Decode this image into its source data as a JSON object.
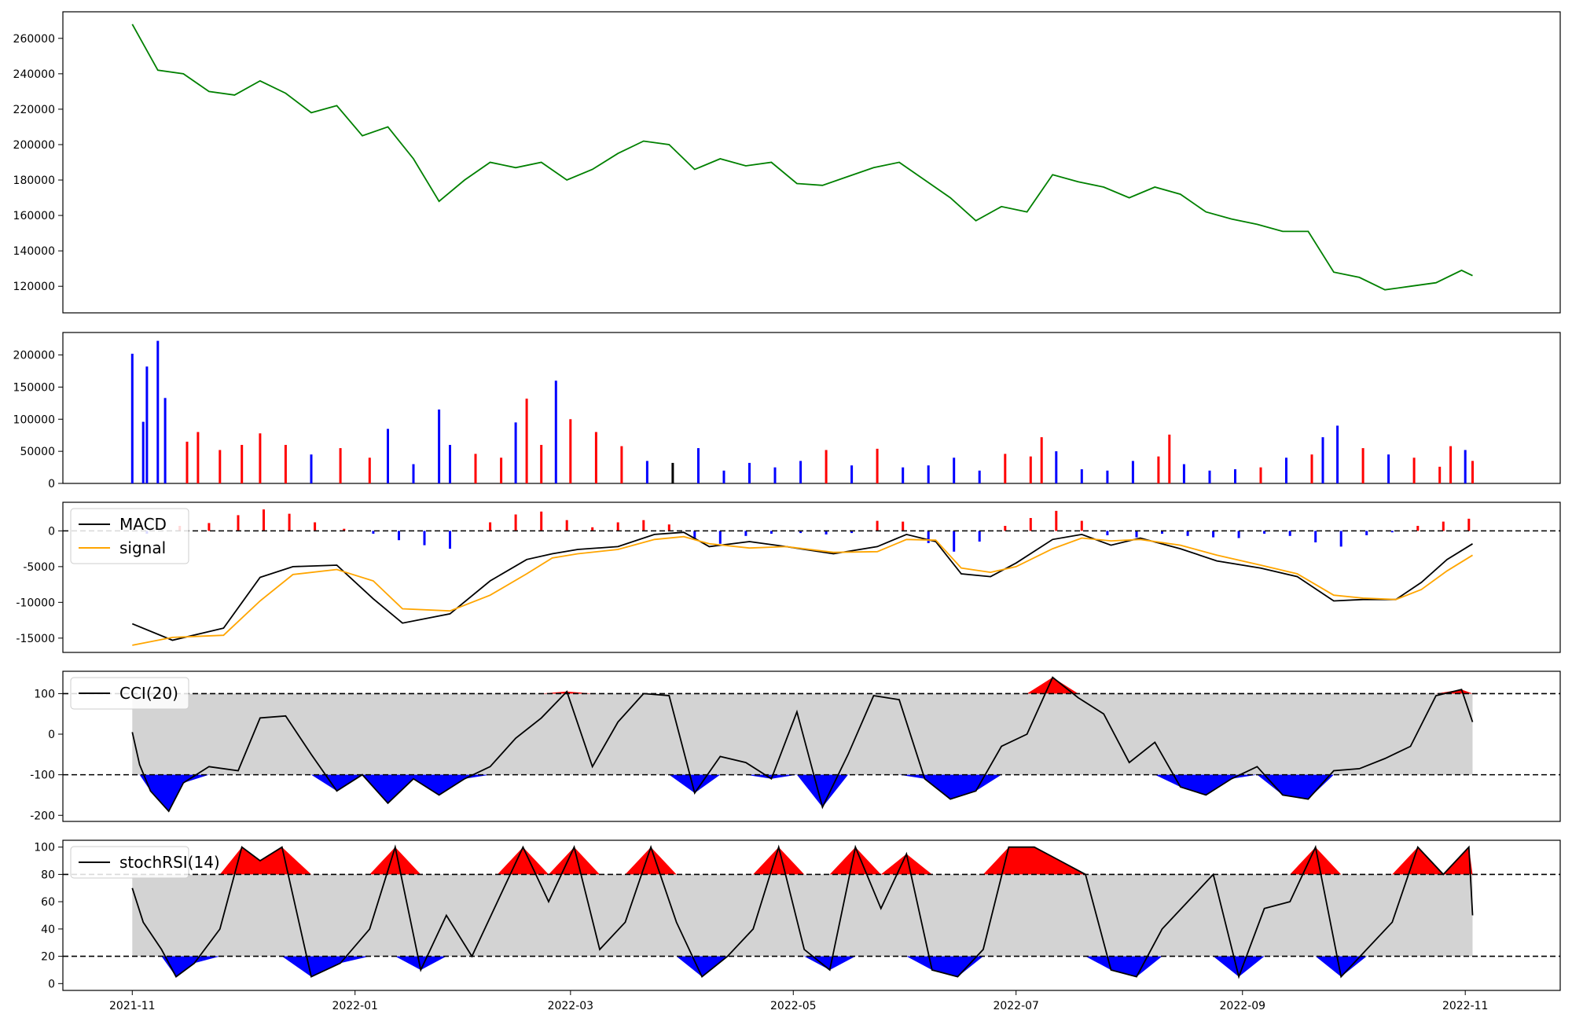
{
  "chart_data": [
    {
      "type": "line",
      "panel": "price",
      "series": [
        {
          "color": "#008000",
          "x": [
            "2021-11-01",
            "2021-11-08",
            "2021-11-15",
            "2021-11-22",
            "2021-11-29",
            "2021-12-06",
            "2021-12-13",
            "2021-12-20",
            "2021-12-27",
            "2022-01-03",
            "2022-01-10",
            "2022-01-17",
            "2022-01-24",
            "2022-01-31",
            "2022-02-07",
            "2022-02-14",
            "2022-02-21",
            "2022-02-28",
            "2022-03-07",
            "2022-03-14",
            "2022-03-21",
            "2022-03-28",
            "2022-04-04",
            "2022-04-11",
            "2022-04-18",
            "2022-04-25",
            "2022-05-02",
            "2022-05-09",
            "2022-05-16",
            "2022-05-23",
            "2022-05-30",
            "2022-06-06",
            "2022-06-13",
            "2022-06-20",
            "2022-06-27",
            "2022-07-04",
            "2022-07-11",
            "2022-07-18",
            "2022-07-25",
            "2022-08-01",
            "2022-08-08",
            "2022-08-15",
            "2022-08-22",
            "2022-08-29",
            "2022-09-05",
            "2022-09-12",
            "2022-09-19",
            "2022-09-26",
            "2022-10-03",
            "2022-10-10",
            "2022-10-17",
            "2022-10-24",
            "2022-10-31",
            "2022-11-03"
          ],
          "values": [
            268000,
            242000,
            240000,
            230000,
            228000,
            236000,
            229000,
            218000,
            222000,
            205000,
            210000,
            192000,
            168000,
            180000,
            190000,
            187000,
            190000,
            180000,
            186000,
            195000,
            202000,
            200000,
            186000,
            192000,
            188000,
            190000,
            178000,
            177000,
            182000,
            187000,
            190000,
            180000,
            170000,
            157000,
            165000,
            162000,
            183000,
            179000,
            176000,
            170000,
            176000,
            172000,
            162000,
            158000,
            155000,
            151000,
            151000,
            128000,
            125000,
            118000,
            120000,
            122000,
            129000,
            126000
          ]
        }
      ],
      "ylim": [
        105000,
        275000
      ],
      "yticks": [
        120000,
        140000,
        160000,
        180000,
        200000,
        220000,
        240000,
        260000
      ]
    },
    {
      "type": "bar",
      "panel": "volume",
      "colors": {
        "blue": "#0000ff",
        "red": "#ff0000",
        "black": "#000000"
      },
      "x": [
        "2021-11-01",
        "2021-11-04",
        "2021-11-05",
        "2021-11-08",
        "2021-11-10",
        "2021-11-16",
        "2021-11-19",
        "2021-11-25",
        "2021-12-01",
        "2021-12-06",
        "2021-12-13",
        "2021-12-20",
        "2021-12-28",
        "2022-01-05",
        "2022-01-10",
        "2022-01-17",
        "2022-01-24",
        "2022-01-27",
        "2022-02-03",
        "2022-02-10",
        "2022-02-14",
        "2022-02-17",
        "2022-02-21",
        "2022-02-25",
        "2022-03-01",
        "2022-03-08",
        "2022-03-15",
        "2022-03-22",
        "2022-03-29",
        "2022-04-05",
        "2022-04-12",
        "2022-04-19",
        "2022-04-26",
        "2022-05-03",
        "2022-05-10",
        "2022-05-17",
        "2022-05-24",
        "2022-05-31",
        "2022-06-07",
        "2022-06-14",
        "2022-06-21",
        "2022-06-28",
        "2022-07-05",
        "2022-07-08",
        "2022-07-12",
        "2022-07-19",
        "2022-07-26",
        "2022-08-02",
        "2022-08-09",
        "2022-08-12",
        "2022-08-16",
        "2022-08-23",
        "2022-08-30",
        "2022-09-06",
        "2022-09-13",
        "2022-09-20",
        "2022-09-23",
        "2022-09-27",
        "2022-10-04",
        "2022-10-11",
        "2022-10-18",
        "2022-10-25",
        "2022-10-28",
        "2022-11-01",
        "2022-11-03"
      ],
      "values": [
        202000,
        96000,
        182000,
        222000,
        133000,
        65000,
        80000,
        52000,
        60000,
        78000,
        60000,
        45000,
        55000,
        40000,
        85000,
        30000,
        115000,
        60000,
        46000,
        40000,
        95000,
        132000,
        60000,
        160000,
        100000,
        80000,
        58000,
        35000,
        32000,
        55000,
        20000,
        32000,
        25000,
        35000,
        52000,
        28000,
        54000,
        25000,
        28000,
        40000,
        20000,
        46000,
        42000,
        72000,
        50000,
        22000,
        20000,
        35000,
        42000,
        76000,
        30000,
        20000,
        22000,
        25000,
        40000,
        45000,
        72000,
        90000,
        55000,
        45000,
        40000,
        26000,
        58000,
        52000,
        35000
      ],
      "bar_colors": [
        "blue",
        "blue",
        "blue",
        "blue",
        "blue",
        "red",
        "red",
        "red",
        "red",
        "red",
        "red",
        "blue",
        "red",
        "red",
        "blue",
        "blue",
        "blue",
        "blue",
        "red",
        "red",
        "blue",
        "red",
        "red",
        "blue",
        "red",
        "red",
        "red",
        "blue",
        "black",
        "blue",
        "blue",
        "blue",
        "blue",
        "blue",
        "red",
        "blue",
        "red",
        "blue",
        "blue",
        "blue",
        "blue",
        "red",
        "red",
        "red",
        "blue",
        "blue",
        "blue",
        "blue",
        "red",
        "red",
        "blue",
        "blue",
        "blue",
        "red",
        "blue",
        "red",
        "blue",
        "blue",
        "red",
        "blue",
        "red",
        "red",
        "red",
        "blue",
        "red"
      ],
      "ylim": [
        0,
        235000
      ],
      "yticks": [
        0,
        50000,
        100000,
        150000,
        200000
      ]
    },
    {
      "type": "line",
      "panel": "macd",
      "series": [
        {
          "name": "MACD",
          "color": "#000000",
          "x": [
            "2021-11-01",
            "2021-11-12",
            "2021-11-26",
            "2021-12-06",
            "2021-12-15",
            "2021-12-27",
            "2022-01-06",
            "2022-01-14",
            "2022-01-27",
            "2022-02-07",
            "2022-02-17",
            "2022-02-24",
            "2022-03-03",
            "2022-03-14",
            "2022-03-24",
            "2022-04-01",
            "2022-04-08",
            "2022-04-19",
            "2022-04-29",
            "2022-05-12",
            "2022-05-24",
            "2022-06-01",
            "2022-06-09",
            "2022-06-16",
            "2022-06-24",
            "2022-07-01",
            "2022-07-11",
            "2022-07-19",
            "2022-07-27",
            "2022-08-04",
            "2022-08-15",
            "2022-08-25",
            "2022-09-06",
            "2022-09-16",
            "2022-09-26",
            "2022-10-04",
            "2022-10-13",
            "2022-10-20",
            "2022-10-27",
            "2022-11-03"
          ],
          "values": [
            -13000,
            -15300,
            -13600,
            -6500,
            -5000,
            -4800,
            -9500,
            -12900,
            -11600,
            -7000,
            -4000,
            -3200,
            -2600,
            -2200,
            -500,
            -200,
            -2200,
            -1500,
            -2200,
            -3200,
            -2200,
            -500,
            -1500,
            -6000,
            -6400,
            -4500,
            -1200,
            -500,
            -2000,
            -1000,
            -2500,
            -4200,
            -5200,
            -6400,
            -9800,
            -9600,
            -9600,
            -7200,
            -4000,
            -1800
          ]
        },
        {
          "name": "signal",
          "color": "#ffa500",
          "x": [
            "2021-11-01",
            "2021-11-12",
            "2021-11-26",
            "2021-12-06",
            "2021-12-15",
            "2021-12-27",
            "2022-01-06",
            "2022-01-14",
            "2022-01-27",
            "2022-02-07",
            "2022-02-17",
            "2022-02-24",
            "2022-03-03",
            "2022-03-14",
            "2022-03-24",
            "2022-04-01",
            "2022-04-08",
            "2022-04-19",
            "2022-04-29",
            "2022-05-12",
            "2022-05-24",
            "2022-06-01",
            "2022-06-09",
            "2022-06-16",
            "2022-06-24",
            "2022-07-01",
            "2022-07-11",
            "2022-07-19",
            "2022-07-27",
            "2022-08-04",
            "2022-08-15",
            "2022-08-25",
            "2022-09-06",
            "2022-09-16",
            "2022-09-26",
            "2022-10-04",
            "2022-10-13",
            "2022-10-20",
            "2022-10-27",
            "2022-11-03"
          ],
          "values": [
            -16000,
            -14900,
            -14600,
            -9800,
            -6100,
            -5400,
            -7000,
            -10900,
            -11200,
            -9000,
            -6000,
            -3800,
            -3200,
            -2600,
            -1200,
            -800,
            -1800,
            -2400,
            -2200,
            -3000,
            -2900,
            -1200,
            -1300,
            -5200,
            -5800,
            -5000,
            -2500,
            -1000,
            -1400,
            -1200,
            -2000,
            -3400,
            -4800,
            -6000,
            -9000,
            -9400,
            -9600,
            -8200,
            -5600,
            -3400
          ]
        }
      ],
      "histogram": {
        "colors": {
          "positive": "#ff0000",
          "negative": "#0000ff"
        },
        "x": [
          "2021-11-05",
          "2021-11-14",
          "2021-11-22",
          "2021-11-30",
          "2021-12-07",
          "2021-12-14",
          "2021-12-21",
          "2021-12-29",
          "2022-01-06",
          "2022-01-13",
          "2022-01-20",
          "2022-01-27",
          "2022-02-07",
          "2022-02-14",
          "2022-02-21",
          "2022-02-28",
          "2022-03-07",
          "2022-03-14",
          "2022-03-21",
          "2022-03-28",
          "2022-04-04",
          "2022-04-11",
          "2022-04-18",
          "2022-04-25",
          "2022-05-03",
          "2022-05-10",
          "2022-05-17",
          "2022-05-24",
          "2022-05-31",
          "2022-06-07",
          "2022-06-14",
          "2022-06-21",
          "2022-06-28",
          "2022-07-05",
          "2022-07-12",
          "2022-07-19",
          "2022-07-26",
          "2022-08-03",
          "2022-08-10",
          "2022-08-17",
          "2022-08-24",
          "2022-08-31",
          "2022-09-07",
          "2022-09-14",
          "2022-09-21",
          "2022-09-28",
          "2022-10-05",
          "2022-10-12",
          "2022-10-19",
          "2022-10-26",
          "2022-11-02"
        ],
        "values": [
          -400,
          700,
          1100,
          2200,
          3000,
          2400,
          1200,
          300,
          -400,
          -1300,
          -2000,
          -2500,
          1200,
          2300,
          2700,
          1500,
          500,
          1200,
          1500,
          900,
          -1200,
          -1800,
          -700,
          -400,
          -300,
          -500,
          -300,
          1400,
          1300,
          -1700,
          -2900,
          -1500,
          700,
          1800,
          2800,
          1400,
          -600,
          -900,
          -400,
          -700,
          -900,
          -1000,
          -400,
          -700,
          -1600,
          -2200,
          -600,
          -200,
          700,
          1300,
          1700
        ]
      },
      "legend": [
        "MACD",
        "signal"
      ],
      "legend_position": "upper-left",
      "reference_lines": [
        0
      ],
      "ylim": [
        -17000,
        4000
      ],
      "yticks": [
        -15000,
        -10000,
        -5000,
        0
      ]
    },
    {
      "type": "line",
      "panel": "cci",
      "series": [
        {
          "name": "CCI(20)",
          "color": "#000000",
          "x": [
            "2021-11-01",
            "2021-11-03",
            "2021-11-06",
            "2021-11-11",
            "2021-11-15",
            "2021-11-22",
            "2021-11-30",
            "2021-12-06",
            "2021-12-13",
            "2021-12-20",
            "2021-12-27",
            "2022-01-03",
            "2022-01-10",
            "2022-01-17",
            "2022-01-24",
            "2022-01-31",
            "2022-02-07",
            "2022-02-14",
            "2022-02-21",
            "2022-02-28",
            "2022-03-07",
            "2022-03-14",
            "2022-03-21",
            "2022-03-28",
            "2022-04-04",
            "2022-04-11",
            "2022-04-18",
            "2022-04-25",
            "2022-05-02",
            "2022-05-09",
            "2022-05-16",
            "2022-05-23",
            "2022-05-30",
            "2022-06-06",
            "2022-06-13",
            "2022-06-20",
            "2022-06-27",
            "2022-07-04",
            "2022-07-11",
            "2022-07-18",
            "2022-07-25",
            "2022-08-01",
            "2022-08-08",
            "2022-08-15",
            "2022-08-22",
            "2022-08-29",
            "2022-09-05",
            "2022-09-12",
            "2022-09-19",
            "2022-09-26",
            "2022-10-03",
            "2022-10-10",
            "2022-10-17",
            "2022-10-24",
            "2022-10-31",
            "2022-11-03"
          ],
          "values": [
            5,
            -75,
            -140,
            -190,
            -120,
            -80,
            -90,
            40,
            45,
            -50,
            -140,
            -100,
            -170,
            -110,
            -150,
            -110,
            -80,
            -10,
            40,
            105,
            -80,
            30,
            100,
            95,
            -145,
            -55,
            -70,
            -110,
            55,
            -180,
            -50,
            95,
            85,
            -110,
            -160,
            -140,
            -30,
            0,
            140,
            90,
            50,
            -70,
            -20,
            -130,
            -150,
            -110,
            -80,
            -150,
            -160,
            -90,
            -85,
            -60,
            -30,
            95,
            110,
            30
          ]
        }
      ],
      "fills": {
        "middle": "#d3d3d3",
        "above": "#ff0000",
        "below": "#0000ff"
      },
      "legend": [
        "CCI(20)"
      ],
      "legend_position": "upper-left",
      "reference_lines": [
        100,
        -100
      ],
      "ylim": [
        -215,
        155
      ],
      "yticks": [
        -200,
        -100,
        0,
        100
      ]
    },
    {
      "type": "line",
      "panel": "stochrsi",
      "series": [
        {
          "name": "stochRSI(14)",
          "color": "#000000",
          "x": [
            "2021-11-01",
            "2021-11-04",
            "2021-11-09",
            "2021-11-13",
            "2021-11-18",
            "2021-11-25",
            "2021-12-01",
            "2021-12-06",
            "2021-12-12",
            "2021-12-20",
            "2021-12-28",
            "2022-01-05",
            "2022-01-12",
            "2022-01-19",
            "2022-01-26",
            "2022-02-02",
            "2022-02-09",
            "2022-02-16",
            "2022-02-23",
            "2022-03-02",
            "2022-03-09",
            "2022-03-16",
            "2022-03-23",
            "2022-03-30",
            "2022-04-06",
            "2022-04-13",
            "2022-04-20",
            "2022-04-27",
            "2022-05-04",
            "2022-05-11",
            "2022-05-18",
            "2022-05-25",
            "2022-06-01",
            "2022-06-08",
            "2022-06-15",
            "2022-06-22",
            "2022-06-29",
            "2022-07-06",
            "2022-07-13",
            "2022-07-20",
            "2022-07-27",
            "2022-08-03",
            "2022-08-10",
            "2022-08-17",
            "2022-08-24",
            "2022-08-31",
            "2022-09-07",
            "2022-09-14",
            "2022-09-21",
            "2022-09-28",
            "2022-10-05",
            "2022-10-12",
            "2022-10-19",
            "2022-10-26",
            "2022-11-02",
            "2022-11-03"
          ],
          "values": [
            70,
            45,
            25,
            5,
            15,
            40,
            100,
            90,
            100,
            5,
            15,
            40,
            100,
            10,
            50,
            20,
            60,
            100,
            60,
            100,
            25,
            45,
            100,
            45,
            5,
            20,
            40,
            100,
            25,
            10,
            100,
            55,
            95,
            10,
            5,
            25,
            100,
            100,
            90,
            80,
            10,
            5,
            40,
            60,
            80,
            5,
            55,
            60,
            100,
            5,
            25,
            45,
            100,
            80,
            100,
            50
          ]
        }
      ],
      "fills": {
        "middle": "#d3d3d3",
        "above": "#ff0000",
        "below": "#0000ff"
      },
      "legend": [
        "stochRSI(14)"
      ],
      "legend_position": "upper-left",
      "reference_lines": [
        80,
        20
      ],
      "ylim": [
        -5,
        105
      ],
      "yticks": [
        0,
        20,
        40,
        60,
        80,
        100
      ],
      "xticks": [
        "2021-11",
        "2022-01",
        "2022-03",
        "2022-05",
        "2022-07",
        "2022-09",
        "2022-11"
      ],
      "xlim": [
        "2021-10-13",
        "2022-11-27"
      ]
    }
  ]
}
